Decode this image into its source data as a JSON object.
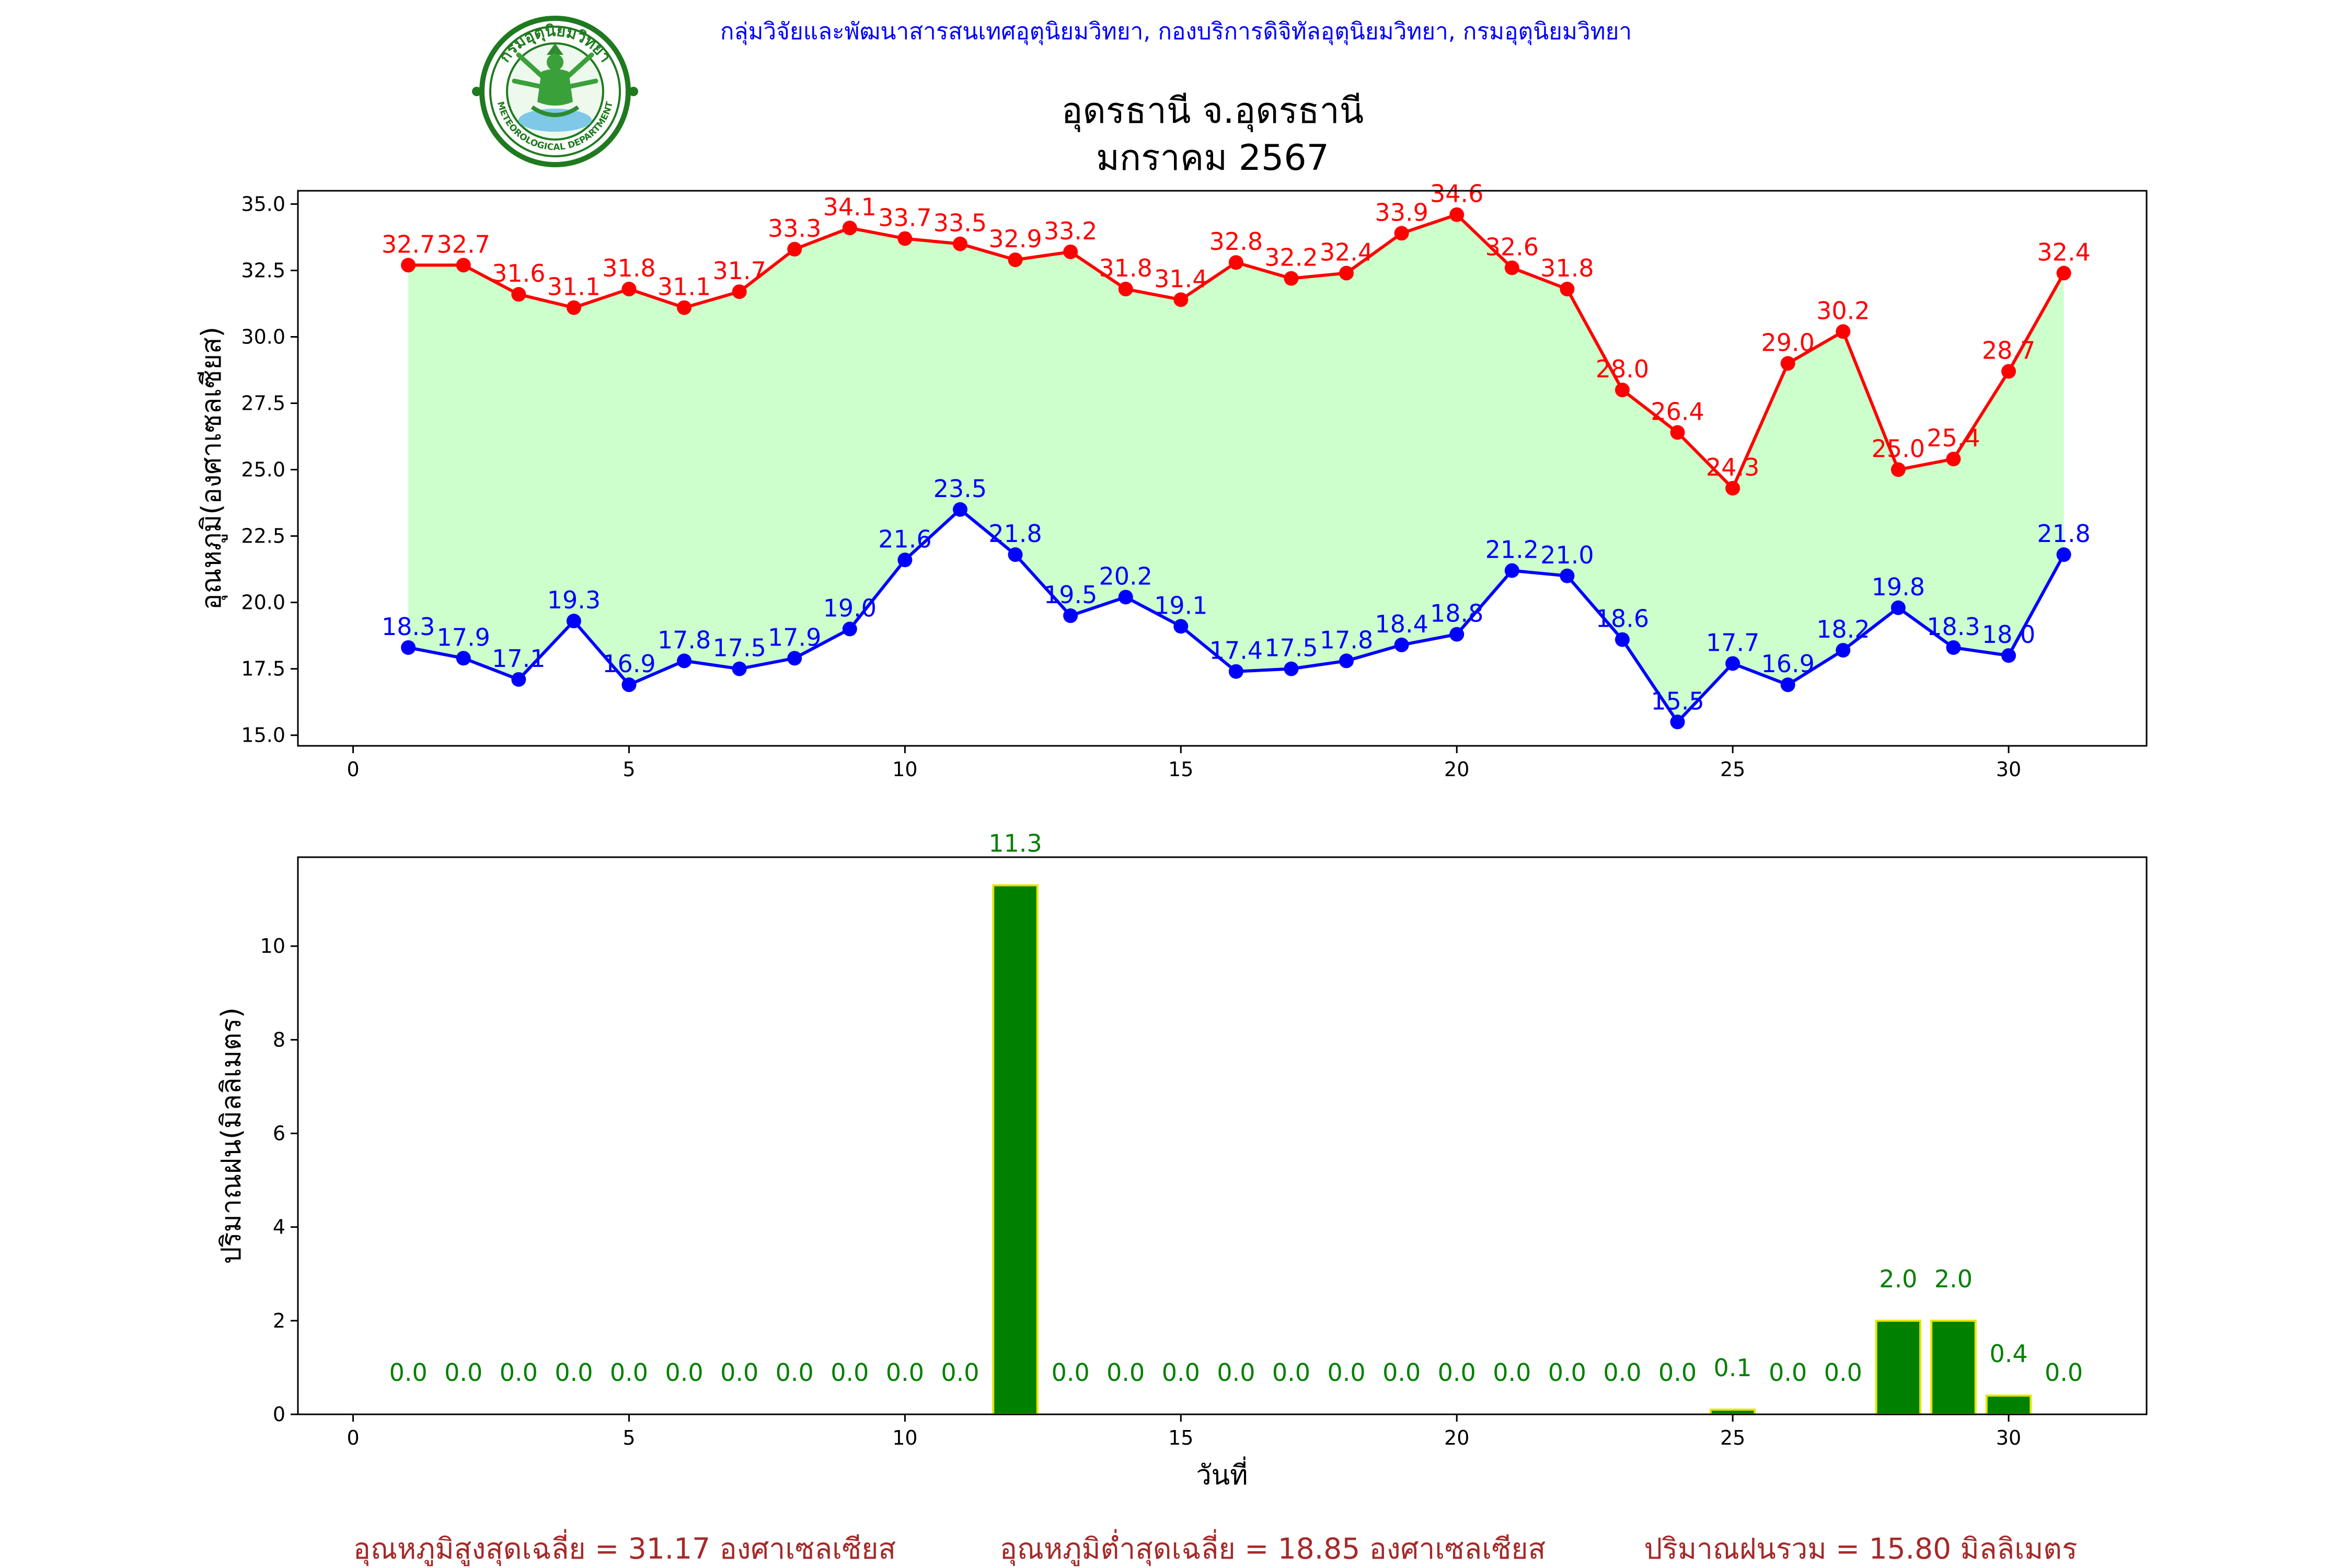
{
  "header": {
    "organization": "กลุ่มวิจัยและพัฒนาสารสนเทศอุตุนิยมวิทยา, กองบริการดิจิทัลอุตุนิยมวิทยา, กรมอุตุนิยมวิทยา",
    "title_line1": "อุดรธานี จ.อุดรธานี",
    "title_line2": "มกราคม 2567",
    "logo": {
      "icon": "meteorological-department-seal-icon",
      "top_text": "กรมอุตุนิยมวิทยา",
      "bottom_text": "METEOROLOGICAL DEPARTMENT"
    }
  },
  "colors": {
    "max_line": "#ff0000",
    "min_line": "#0000ff",
    "band_fill": "#ccffcc",
    "rain_bar": "#008000",
    "rain_edge": "#e5e500",
    "rain_label": "#008000",
    "header_text": "#0000ff",
    "summary_text": "#a52a2a"
  },
  "chart_data": [
    {
      "type": "line",
      "ylabel": "อุณหภูมิ(องศาเซลเซียส)",
      "xlabel": "",
      "xlim": [
        -1,
        32.5
      ],
      "ylim": [
        14.6,
        35.5
      ],
      "xticks": [
        0,
        5,
        10,
        15,
        20,
        25,
        30
      ],
      "yticks": [
        "15.0",
        "17.5",
        "20.0",
        "22.5",
        "25.0",
        "27.5",
        "30.0",
        "32.5",
        "35.0"
      ],
      "x": [
        1,
        2,
        3,
        4,
        5,
        6,
        7,
        8,
        9,
        10,
        11,
        12,
        13,
        14,
        15,
        16,
        17,
        18,
        19,
        20,
        21,
        22,
        23,
        24,
        25,
        26,
        27,
        28,
        29,
        30,
        31
      ],
      "series": [
        {
          "key": "max",
          "name": "",
          "color": "#ff0000",
          "values": [
            32.7,
            32.7,
            31.6,
            31.1,
            31.8,
            31.1,
            31.7,
            33.3,
            34.1,
            33.7,
            33.5,
            32.9,
            33.2,
            31.8,
            31.4,
            32.8,
            32.2,
            32.4,
            33.9,
            34.6,
            32.6,
            31.8,
            28.0,
            26.4,
            24.3,
            29.0,
            30.2,
            25.0,
            25.4,
            28.7,
            32.4
          ]
        },
        {
          "key": "min",
          "name": "",
          "color": "#0000ff",
          "values": [
            18.3,
            17.9,
            17.1,
            19.3,
            16.9,
            17.8,
            17.5,
            17.9,
            19.0,
            21.6,
            23.5,
            21.8,
            19.5,
            20.2,
            19.1,
            17.4,
            17.5,
            17.8,
            18.4,
            18.8,
            21.2,
            21.0,
            18.6,
            15.5,
            17.7,
            16.9,
            18.2,
            19.8,
            18.3,
            18.0,
            21.8
          ]
        }
      ],
      "grid": false,
      "legend": "none"
    },
    {
      "type": "bar",
      "ylabel": "ปริมาณฝน(มิลลิเมตร)",
      "xlabel": "วันที่",
      "xlim": [
        -1,
        32.5
      ],
      "ylim": [
        0,
        11.9
      ],
      "xticks": [
        0,
        5,
        10,
        15,
        20,
        25,
        30
      ],
      "yticks": [
        0,
        2,
        4,
        6,
        8,
        10
      ],
      "x": [
        1,
        2,
        3,
        4,
        5,
        6,
        7,
        8,
        9,
        10,
        11,
        12,
        13,
        14,
        15,
        16,
        17,
        18,
        19,
        20,
        21,
        22,
        23,
        24,
        25,
        26,
        27,
        28,
        29,
        30,
        31
      ],
      "values": [
        0.0,
        0.0,
        0.0,
        0.0,
        0.0,
        0.0,
        0.0,
        0.0,
        0.0,
        0.0,
        0.0,
        11.3,
        0.0,
        0.0,
        0.0,
        0.0,
        0.0,
        0.0,
        0.0,
        0.0,
        0.0,
        0.0,
        0.0,
        0.0,
        0.1,
        0.0,
        0.0,
        2.0,
        2.0,
        0.4,
        0.0
      ],
      "grid": false,
      "legend": "none"
    }
  ],
  "summary": {
    "avg_max": "อุณหภูมิสูงสุดเฉลี่ย = 31.17 องศาเซลเซียส",
    "avg_min": "อุณหภูมิต่ำสุดเฉลี่ย = 18.85 องศาเซลเซียส",
    "total_rain": "ปริมาณฝนรวม = 15.80 มิลลิเมตร"
  }
}
